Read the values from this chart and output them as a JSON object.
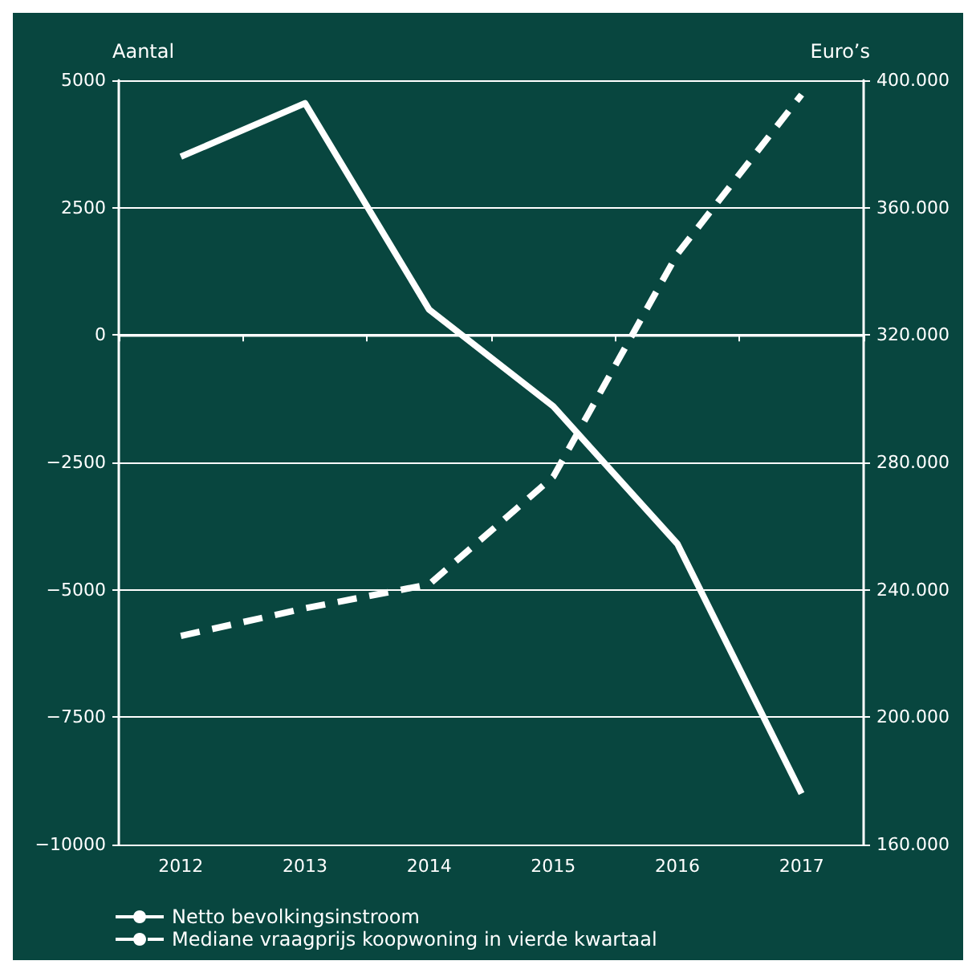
{
  "chart_data": {
    "type": "line",
    "xlabel": null,
    "ylabel": "Aantal",
    "y2label": "Euro’s",
    "categories": [
      "2012",
      "2013",
      "2014",
      "2015",
      "2016",
      "2017"
    ],
    "series": [
      {
        "name": "Netto bevolkingsinstroom",
        "color": "#ffffff",
        "line_style": "solid",
        "values": [
          3500,
          4550,
          500,
          -1400,
          -4100,
          -9000
        ]
      },
      {
        "name": "Mediane vraagprijs koopwoning in vierde kwartaal",
        "color": "#ffffff",
        "line_style": "dashed",
        "axis": "y2",
        "values": [
          225500,
          234200,
          241700,
          275500,
          345500,
          395500
        ]
      }
    ],
    "ylim": [
      -10000,
      5000
    ],
    "yticks": [
      {
        "value": -10000,
        "label": "−10000"
      },
      {
        "value": -7500,
        "label": "−7500"
      },
      {
        "value": -5000,
        "label": "−5000"
      },
      {
        "value": -2500,
        "label": "−2500"
      },
      0,
      2500,
      5000
    ],
    "y2lim": [
      160000,
      400000
    ],
    "y2ticks": [
      {
        "value": 160000,
        "label": "160.000"
      },
      {
        "value": 200000,
        "label": "200.000"
      },
      {
        "value": 240000,
        "label": "240.000"
      },
      {
        "value": 280000,
        "label": "280.000"
      },
      {
        "value": 320000,
        "label": "320.000"
      },
      {
        "value": 360000,
        "label": "360.000"
      },
      {
        "value": 400000,
        "label": "400.000"
      }
    ],
    "grid": "y",
    "legend": "bottom left",
    "marker": "none"
  }
}
